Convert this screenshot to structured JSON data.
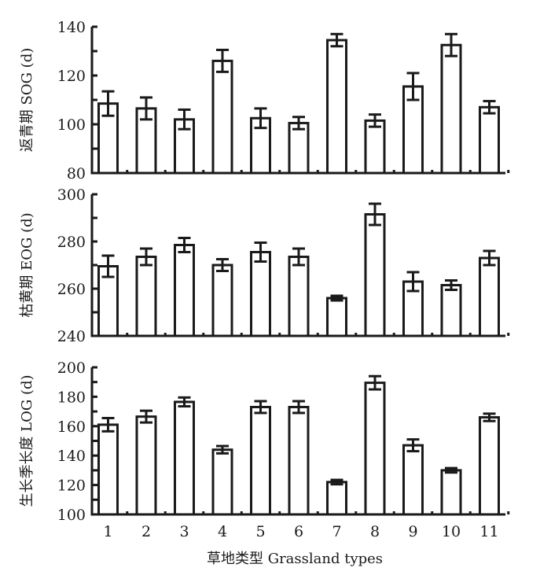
{
  "chart_data": [
    {
      "type": "bar",
      "id": "sog",
      "ylabel": "返青期 SOG (d)",
      "ylim": [
        80,
        140
      ],
      "yticks": [
        80,
        100,
        120,
        140
      ],
      "yminor_step": 10,
      "categories": [
        "1",
        "2",
        "3",
        "4",
        "5",
        "6",
        "7",
        "8",
        "9",
        "10",
        "11"
      ],
      "values": [
        108.5,
        106.5,
        102,
        126,
        102.5,
        100.5,
        134.5,
        101.5,
        115.5,
        132.5,
        107
      ],
      "errors": [
        5,
        4.5,
        4,
        4.5,
        4,
        2.5,
        2.5,
        2.5,
        5.5,
        4.5,
        2.5
      ],
      "show_xticklabels": false
    },
    {
      "type": "bar",
      "id": "eog",
      "ylabel": "枯黄期 EOG (d)",
      "ylim": [
        240,
        300
      ],
      "yticks": [
        240,
        260,
        280,
        300
      ],
      "yminor_step": 10,
      "categories": [
        "1",
        "2",
        "3",
        "4",
        "5",
        "6",
        "7",
        "8",
        "9",
        "10",
        "11"
      ],
      "values": [
        269.5,
        273.5,
        278.5,
        270,
        275.5,
        273.5,
        256,
        291.5,
        263,
        261.5,
        273
      ],
      "errors": [
        4.5,
        3.5,
        3,
        2.5,
        4,
        3.5,
        1,
        4.5,
        4,
        2,
        3
      ],
      "show_xticklabels": false
    },
    {
      "type": "bar",
      "id": "log",
      "ylabel": "生长季长度 LOG (d)",
      "ylim": [
        100,
        200
      ],
      "yticks": [
        100,
        120,
        140,
        160,
        180,
        200
      ],
      "yminor_step": 10,
      "categories": [
        "1",
        "2",
        "3",
        "4",
        "5",
        "6",
        "7",
        "8",
        "9",
        "10",
        "11"
      ],
      "values": [
        161,
        166.5,
        176.5,
        144,
        173,
        173,
        122,
        189.5,
        147,
        130,
        166
      ],
      "errors": [
        4.5,
        4,
        3,
        2.5,
        4,
        4,
        1.5,
        4.5,
        4,
        1.5,
        2.5
      ],
      "show_xticklabels": true
    }
  ],
  "xlabel": "草地类型 Grassland types"
}
